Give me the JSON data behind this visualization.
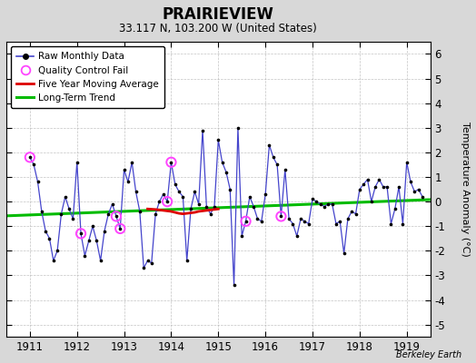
{
  "title": "PRAIRIEVIEW",
  "subtitle": "33.117 N, 103.200 W (United States)",
  "watermark": "Berkeley Earth",
  "ylabel": "Temperature Anomaly (°C)",
  "ylim": [
    -5.5,
    6.5
  ],
  "yticks": [
    -5,
    -4,
    -3,
    -2,
    -1,
    0,
    1,
    2,
    3,
    4,
    5,
    6
  ],
  "xlim": [
    1910.5,
    1919.5
  ],
  "xticks": [
    1911,
    1912,
    1913,
    1914,
    1915,
    1916,
    1917,
    1918,
    1919
  ],
  "bg_color": "#d8d8d8",
  "plot_bg_color": "#ffffff",
  "raw_x": [
    1911.0,
    1911.083,
    1911.167,
    1911.25,
    1911.333,
    1911.417,
    1911.5,
    1911.583,
    1911.667,
    1911.75,
    1911.833,
    1911.917,
    1912.0,
    1912.083,
    1912.167,
    1912.25,
    1912.333,
    1912.417,
    1912.5,
    1912.583,
    1912.667,
    1912.75,
    1912.833,
    1912.917,
    1913.0,
    1913.083,
    1913.167,
    1913.25,
    1913.333,
    1913.417,
    1913.5,
    1913.583,
    1913.667,
    1913.75,
    1913.833,
    1913.917,
    1914.0,
    1914.083,
    1914.167,
    1914.25,
    1914.333,
    1914.417,
    1914.5,
    1914.583,
    1914.667,
    1914.75,
    1914.833,
    1914.917,
    1915.0,
    1915.083,
    1915.167,
    1915.25,
    1915.333,
    1915.417,
    1915.5,
    1915.583,
    1915.667,
    1915.75,
    1915.833,
    1915.917,
    1916.0,
    1916.083,
    1916.167,
    1916.25,
    1916.333,
    1916.417,
    1916.5,
    1916.583,
    1916.667,
    1916.75,
    1916.833,
    1916.917,
    1917.0,
    1917.083,
    1917.167,
    1917.25,
    1917.333,
    1917.417,
    1917.5,
    1917.583,
    1917.667,
    1917.75,
    1917.833,
    1917.917,
    1918.0,
    1918.083,
    1918.167,
    1918.25,
    1918.333,
    1918.417,
    1918.5,
    1918.583,
    1918.667,
    1918.75,
    1918.833,
    1918.917,
    1919.0,
    1919.083,
    1919.167,
    1919.25,
    1919.333
  ],
  "raw_y": [
    1.8,
    1.5,
    0.8,
    -0.4,
    -1.2,
    -1.5,
    -2.4,
    -2.0,
    -0.5,
    0.2,
    -0.3,
    -0.7,
    1.6,
    -1.3,
    -2.2,
    -1.6,
    -1.0,
    -1.6,
    -2.4,
    -1.2,
    -0.5,
    -0.1,
    -0.6,
    -1.1,
    1.3,
    0.8,
    1.6,
    0.4,
    -0.4,
    -2.7,
    -2.4,
    -2.5,
    -0.5,
    -0.0,
    0.3,
    0.0,
    1.6,
    0.7,
    0.4,
    0.2,
    -2.4,
    -0.3,
    0.4,
    -0.1,
    2.9,
    -0.2,
    -0.5,
    -0.2,
    2.5,
    1.6,
    1.2,
    0.5,
    -3.4,
    3.0,
    -1.4,
    -0.8,
    0.2,
    -0.2,
    -0.7,
    -0.8,
    0.3,
    2.3,
    1.8,
    1.5,
    -0.6,
    1.3,
    -0.7,
    -0.9,
    -1.4,
    -0.7,
    -0.8,
    -0.9,
    0.1,
    0.0,
    -0.1,
    -0.2,
    -0.1,
    -0.1,
    -0.9,
    -0.8,
    -2.1,
    -0.7,
    -0.4,
    -0.5,
    0.5,
    0.7,
    0.9,
    0.0,
    0.6,
    0.9,
    0.6,
    0.6,
    -0.9,
    -0.3,
    0.6,
    -0.9,
    1.6,
    0.8,
    0.4,
    0.5,
    0.2
  ],
  "qc_fail_x": [
    1911.0,
    1912.083,
    1912.833,
    1912.917,
    1913.917,
    1914.0,
    1915.583,
    1916.333
  ],
  "qc_fail_y": [
    1.8,
    -1.3,
    -0.6,
    -1.1,
    0.0,
    1.6,
    -0.8,
    -0.6
  ],
  "moving_avg_x": [
    1913.5,
    1913.667,
    1913.75,
    1913.833,
    1913.917,
    1914.0,
    1914.083,
    1914.167,
    1914.25,
    1914.333,
    1914.5,
    1914.583,
    1914.667,
    1914.75,
    1914.833,
    1914.917,
    1915.0
  ],
  "moving_avg_y": [
    -0.3,
    -0.32,
    -0.34,
    -0.36,
    -0.38,
    -0.4,
    -0.44,
    -0.48,
    -0.5,
    -0.48,
    -0.44,
    -0.4,
    -0.38,
    -0.36,
    -0.34,
    -0.32,
    -0.3
  ],
  "trend_x": [
    1910.5,
    1919.5
  ],
  "trend_y": [
    -0.58,
    0.08
  ],
  "line_color": "#4444cc",
  "dot_color": "#000000",
  "qc_color": "#ff44ff",
  "moving_avg_color": "#dd0000",
  "trend_color": "#00bb00"
}
